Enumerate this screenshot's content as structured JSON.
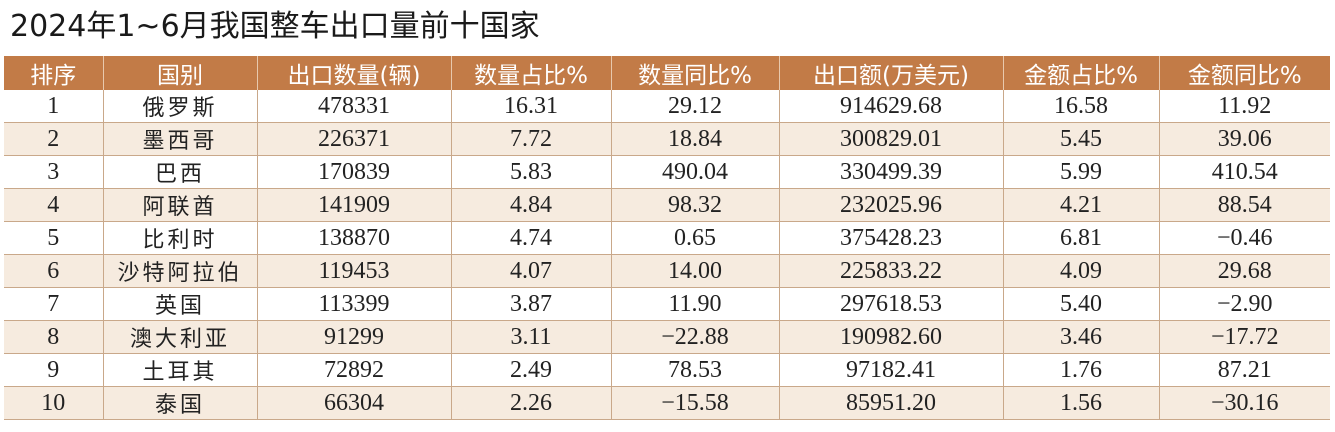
{
  "title": "2024年1~6月我国整车出口量前十国家",
  "table": {
    "headers": [
      "排序",
      "国别",
      "出口数量(辆)",
      "数量占比%",
      "数量同比%",
      "出口额(万美元)",
      "金额占比%",
      "金额同比%"
    ],
    "rows": [
      [
        "1",
        "俄罗斯",
        "478331",
        "16.31",
        "29.12",
        "914629.68",
        "16.58",
        "11.92"
      ],
      [
        "2",
        "墨西哥",
        "226371",
        "7.72",
        "18.84",
        "300829.01",
        "5.45",
        "39.06"
      ],
      [
        "3",
        "巴西",
        "170839",
        "5.83",
        "490.04",
        "330499.39",
        "5.99",
        "410.54"
      ],
      [
        "4",
        "阿联酋",
        "141909",
        "4.84",
        "98.32",
        "232025.96",
        "4.21",
        "88.54"
      ],
      [
        "5",
        "比利时",
        "138870",
        "4.74",
        "0.65",
        "375428.23",
        "6.81",
        "−0.46"
      ],
      [
        "6",
        "沙特阿拉伯",
        "119453",
        "4.07",
        "14.00",
        "225833.22",
        "4.09",
        "29.68"
      ],
      [
        "7",
        "英国",
        "113399",
        "3.87",
        "11.90",
        "297618.53",
        "5.40",
        "−2.90"
      ],
      [
        "8",
        "澳大利亚",
        "91299",
        "3.11",
        "−22.88",
        "190982.60",
        "3.46",
        "−17.72"
      ],
      [
        "9",
        "土耳其",
        "72892",
        "2.49",
        "78.53",
        "97182.41",
        "1.76",
        "87.21"
      ],
      [
        "10",
        "泰国",
        "66304",
        "2.26",
        "−15.58",
        "85951.20",
        "1.56",
        "−30.16"
      ]
    ]
  }
}
